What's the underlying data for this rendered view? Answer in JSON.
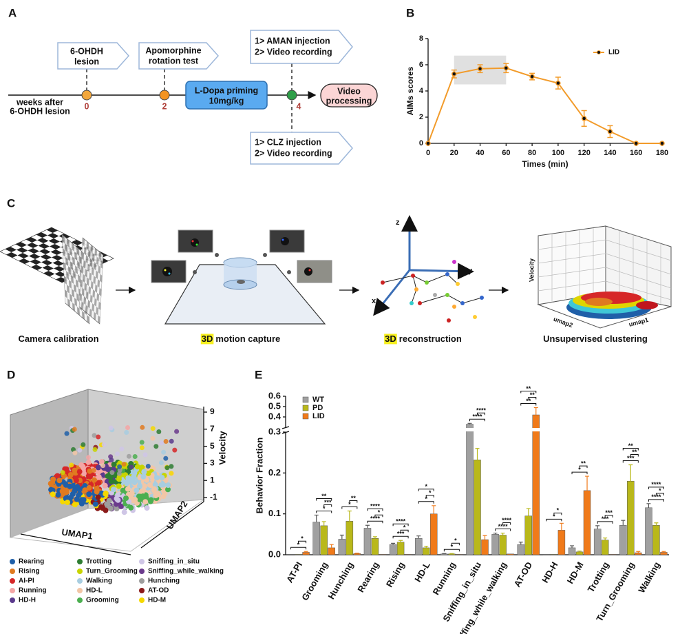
{
  "panels": {
    "a": "A",
    "b": "B",
    "c": "C",
    "d": "D",
    "e": "E"
  },
  "timeline": {
    "axis_label_1": "weeks after",
    "axis_label_2": "6-OHDH lesion",
    "week_0": "0",
    "week_2": "2",
    "week_4": "4",
    "lesion_1": "6-OHDH",
    "lesion_2": "lesion",
    "rotation_1": "Apomorphine",
    "rotation_2": "rotation test",
    "priming_1": "L-Dopa priming",
    "priming_2": "10mg/kg",
    "aman_1": "1> AMAN injection",
    "aman_2": "2> Video recording",
    "clz_1": "1> CLZ injection",
    "clz_2": "2> Video recording",
    "processing_1": "Video",
    "processing_2": "processing"
  },
  "pipeline": {
    "steps": [
      {
        "label": "Camera calibration"
      },
      {
        "highlight": "3D",
        "label": "motion capture"
      },
      {
        "highlight": "3D",
        "label": "reconstruction"
      },
      {
        "label": "Unsupervised clustering"
      }
    ],
    "axes": [
      "z",
      "y",
      "x"
    ],
    "cluster_axes": [
      "Velocity",
      "umap2",
      "umap1"
    ]
  },
  "chart_data": [
    {
      "type": "line",
      "xlabel": "Times (min)",
      "ylabel": "AIMs scores",
      "x": [
        0,
        20,
        40,
        60,
        80,
        100,
        120,
        140,
        160,
        180
      ],
      "series": [
        {
          "name": "LID",
          "color": "#f29b2a",
          "values": [
            0,
            5.3,
            5.7,
            5.75,
            5.1,
            4.6,
            1.9,
            0.9,
            0,
            0
          ],
          "errors": [
            0,
            0.3,
            0.3,
            0.35,
            0.25,
            0.45,
            0.6,
            0.45,
            0,
            0
          ]
        }
      ],
      "xlim": [
        0,
        180
      ],
      "ylim": [
        0,
        8
      ],
      "xticks": [
        0,
        20,
        40,
        60,
        80,
        100,
        120,
        140,
        160,
        180
      ],
      "yticks": [
        0,
        2,
        4,
        6,
        8
      ],
      "legend": "upper right",
      "highlight": {
        "x": [
          20,
          60
        ],
        "y": [
          4.5,
          6.7
        ],
        "color": "#e0e0e0"
      }
    },
    {
      "type": "bar",
      "ylabel": "Behavior Fraction",
      "categories": [
        "AT-PI",
        "Grooming",
        "Hunching",
        "Rearing",
        "Rising",
        "HD-L",
        "Running",
        "Sniffing_in_situ",
        "Sniffing_while_walking",
        "AT-OD",
        "HD-H",
        "HD-M",
        "Trotting",
        "Turn_Grooming",
        "Walking"
      ],
      "series": [
        {
          "name": "WT",
          "color": "#a0a0a0",
          "values": [
            0,
            0.08,
            0.038,
            0.065,
            0.025,
            0.04,
            0.002,
            0.33,
            0.05,
            0.025,
            0.001,
            0.017,
            0.063,
            0.072,
            0.115
          ],
          "errors": [
            0,
            0.017,
            0.01,
            0.007,
            0.003,
            0.006,
            0.001,
            0.008,
            0.003,
            0.006,
            0,
            0.005,
            0.008,
            0.012,
            0.01
          ]
        },
        {
          "name": "PD",
          "color": "#b9b81a",
          "values": [
            0.001,
            0.071,
            0.082,
            0.04,
            0.031,
            0.017,
            0.002,
            0.232,
            0.048,
            0.095,
            0.001,
            0.007,
            0.036,
            0.18,
            0.072
          ],
          "errors": [
            0,
            0.01,
            0.025,
            0.004,
            0.004,
            0.004,
            0.001,
            0.028,
            0.005,
            0.018,
            0,
            0.002,
            0.005,
            0.04,
            0.006
          ]
        },
        {
          "name": "LID",
          "color": "#f07a1a",
          "values": [
            0.006,
            0.017,
            0.003,
            0.001,
            0.001,
            0.1,
            0.001,
            0.037,
            0.002,
            0.42,
            0.06,
            0.157,
            0.001,
            0.005,
            0.006
          ],
          "errors": [
            0.002,
            0.008,
            0.001,
            0,
            0,
            0.02,
            0,
            0.01,
            0,
            0.07,
            0.017,
            0.035,
            0,
            0.003,
            0.002
          ]
        }
      ],
      "ylim": [
        0,
        0.6
      ],
      "ybreak": 0.3,
      "yticks": [
        {
          "value": 0,
          "label": "0.0"
        },
        0.1,
        0.2,
        0.3,
        0.4,
        0.5,
        0.6
      ],
      "legend": "upper left",
      "significance": [
        [
          "*",
          "*"
        ],
        [
          "*",
          "***",
          "**"
        ],
        [
          "*",
          "**"
        ],
        [
          "****",
          "*",
          "****"
        ],
        [
          "***",
          "*",
          "****"
        ],
        [
          "*",
          "*",
          "*"
        ],
        [
          "*",
          "*"
        ],
        [
          "****",
          "****"
        ],
        [
          "****",
          "****"
        ],
        [
          "**",
          "**",
          "**"
        ],
        [
          "*",
          "*"
        ],
        [
          "*",
          "**"
        ],
        [
          "***",
          "***"
        ],
        [
          "***",
          "**",
          "**"
        ],
        [
          "****",
          "*",
          "****"
        ]
      ]
    },
    {
      "type": "scatter3d",
      "xlabel": "UMAP1",
      "ylabel": "UMAP2",
      "zlabel": "Velocity",
      "zlim": [
        -1,
        9
      ],
      "zticks": [
        9,
        7,
        5,
        3,
        1,
        -1
      ],
      "series": [
        {
          "name": "Rearing",
          "color": "#1f5fa8"
        },
        {
          "name": "Rising",
          "color": "#e07a20"
        },
        {
          "name": "AI-PI",
          "color": "#d62728"
        },
        {
          "name": "Running",
          "color": "#f4a6a6"
        },
        {
          "name": "HD-H",
          "color": "#5b3a8c"
        },
        {
          "name": "Trotting",
          "color": "#2e7d32"
        },
        {
          "name": "Turn_Grooming",
          "color": "#c8d400"
        },
        {
          "name": "Walking",
          "color": "#a8cde0"
        },
        {
          "name": "HD-L",
          "color": "#f2c6a6"
        },
        {
          "name": "Grooming",
          "color": "#4caf50"
        },
        {
          "name": "Sniffing_in_situ",
          "color": "#cfc6e6"
        },
        {
          "name": "Sniffing_while_walking",
          "color": "#6b3a8c"
        },
        {
          "name": "Hunching",
          "color": "#9e9e9e"
        },
        {
          "name": "AT-OD",
          "color": "#8b1a1a"
        },
        {
          "name": "HD-M",
          "color": "#f5d800"
        }
      ]
    }
  ]
}
